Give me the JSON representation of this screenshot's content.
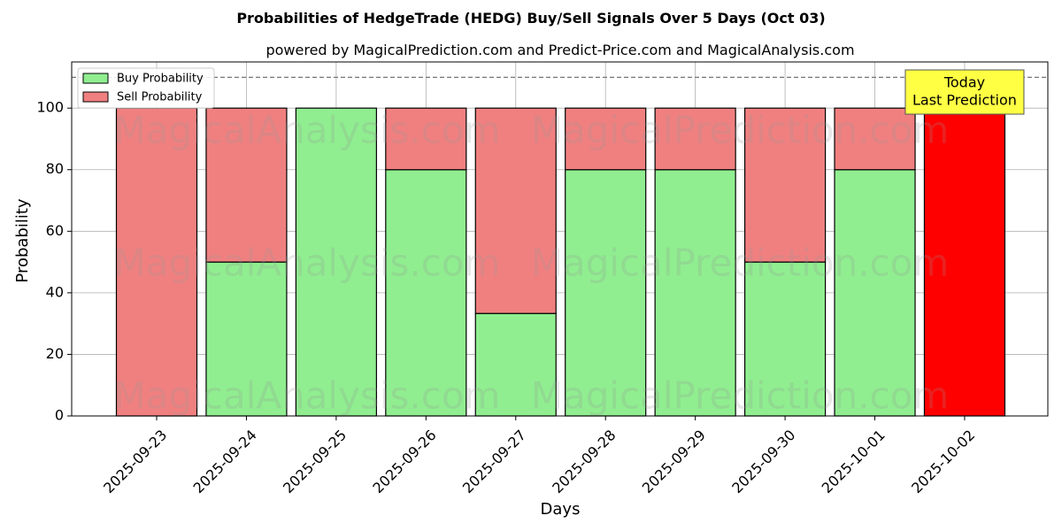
{
  "chart_data": {
    "type": "bar",
    "stacked": true,
    "title": "Probabilities of HedgeTrade (HEDG) Buy/Sell Signals Over 5 Days (Oct 03)",
    "subtitle": "powered by MagicalPrediction.com and Predict-Price.com and MagicalAnalysis.com",
    "xlabel": "Days",
    "ylabel": "Probability",
    "ylim": [
      0,
      115
    ],
    "yticks": [
      0,
      20,
      40,
      60,
      80,
      100
    ],
    "grid": true,
    "legend_position": "top-left",
    "reference_line": {
      "y": 110,
      "style": "dashed"
    },
    "categories": [
      "2025-09-23",
      "2025-09-24",
      "2025-09-25",
      "2025-09-26",
      "2025-09-27",
      "2025-09-28",
      "2025-09-29",
      "2025-09-30",
      "2025-10-01",
      "2025-10-02"
    ],
    "series": [
      {
        "name": "Buy Probability",
        "color": "#90ee90",
        "values": [
          0,
          50,
          100,
          80,
          33.3,
          80,
          80,
          50,
          80,
          0
        ]
      },
      {
        "name": "Sell Probability",
        "color": "#f08080",
        "values": [
          100,
          50,
          0,
          20,
          66.7,
          20,
          20,
          50,
          20,
          100
        ]
      }
    ],
    "highlight": {
      "category": "2025-10-02",
      "color": "#ff0000"
    },
    "annotation": {
      "lines": [
        "Today",
        "Last Prediction"
      ],
      "background": "#ffff44"
    },
    "watermarks": [
      "MagicalAnalysis.com",
      "MagicalPrediction.com"
    ]
  }
}
